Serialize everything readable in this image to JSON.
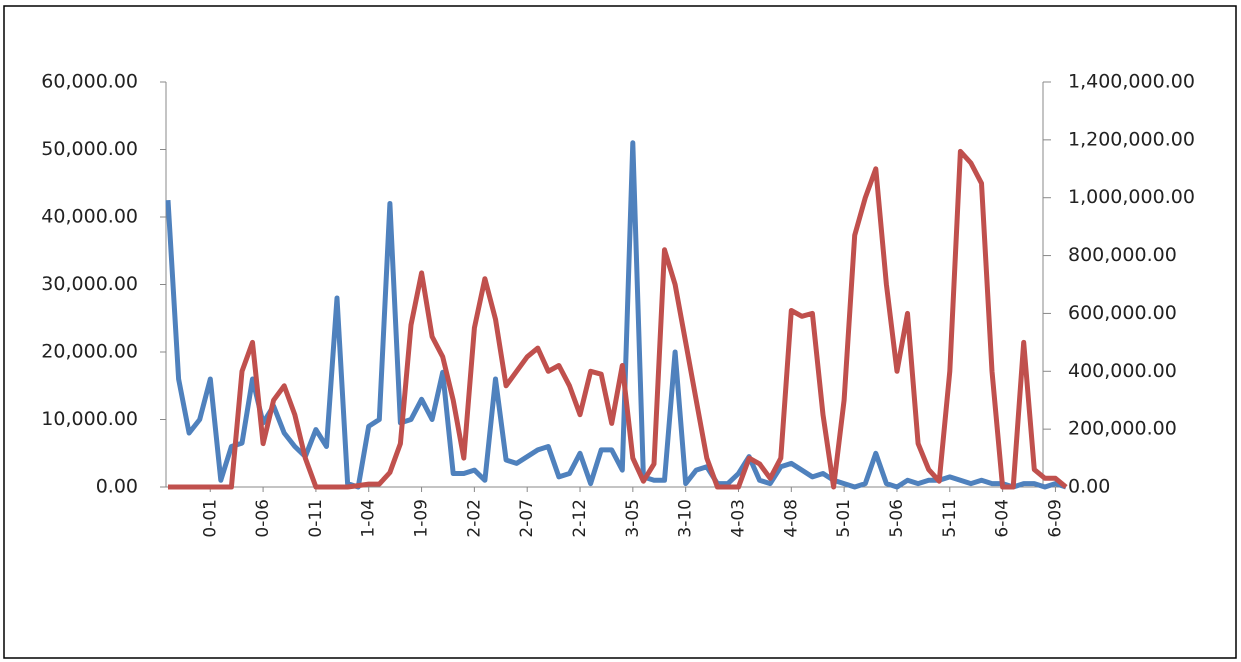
{
  "chart_data": {
    "type": "line",
    "categories": [
      null,
      null,
      null,
      null,
      "0-01",
      null,
      null,
      null,
      null,
      "0-06",
      null,
      null,
      null,
      null,
      "0-11",
      null,
      null,
      null,
      null,
      "1-04",
      null,
      null,
      null,
      null,
      "1-09",
      null,
      null,
      null,
      null,
      "2-02",
      null,
      null,
      null,
      null,
      "2-07",
      null,
      null,
      null,
      null,
      "2-12",
      null,
      null,
      null,
      null,
      "3-05",
      null,
      null,
      null,
      null,
      "3-10",
      null,
      null,
      null,
      null,
      "4-03",
      null,
      null,
      null,
      null,
      "4-08",
      null,
      null,
      null,
      null,
      "5-01",
      null,
      null,
      null,
      null,
      "5-06",
      null,
      null,
      null,
      null,
      "5-11",
      null,
      null,
      null,
      null,
      "6-04",
      null,
      null,
      null,
      null,
      "6-09",
      null
    ],
    "series": [
      {
        "color": "#4f81bd",
        "axis": "y",
        "values": [
          42500,
          16000,
          8000,
          10000,
          16000,
          1000,
          6000,
          6500,
          16000,
          9500,
          12000,
          8000,
          6000,
          4500,
          8500,
          6000,
          28000,
          500,
          0,
          9000,
          10000,
          42000,
          9500,
          10000,
          13000,
          10000,
          17000,
          2000,
          2000,
          2500,
          1000,
          16000,
          4000,
          3500,
          4500,
          5500,
          6000,
          1500,
          2000,
          5000,
          500,
          5500,
          5500,
          2500,
          51000,
          1500,
          1000,
          1000,
          20000,
          500,
          2500,
          3000,
          500,
          500,
          2000,
          4500,
          1000,
          500,
          3000,
          3500,
          2500,
          1500,
          2000,
          1000,
          500,
          0,
          500,
          5000,
          500,
          0,
          1000,
          500,
          1000,
          1000,
          1500,
          1000,
          500,
          1000,
          500,
          500,
          0,
          500,
          500,
          0,
          500,
          0
        ]
      },
      {
        "color": "#c0504d",
        "axis": "y2",
        "values": [
          0,
          0,
          0,
          0,
          0,
          0,
          0,
          400000,
          500000,
          150000,
          300000,
          350000,
          250000,
          100000,
          0,
          0,
          0,
          0,
          5000,
          10000,
          10000,
          50000,
          150000,
          560000,
          740000,
          520000,
          450000,
          300000,
          100000,
          550000,
          720000,
          580000,
          350000,
          400000,
          450000,
          480000,
          400000,
          420000,
          350000,
          250000,
          400000,
          390000,
          220000,
          420000,
          100000,
          20000,
          80000,
          820000,
          700000,
          500000,
          300000,
          100000,
          0,
          0,
          0,
          100000,
          80000,
          30000,
          100000,
          610000,
          590000,
          600000,
          250000,
          0,
          300000,
          870000,
          1000000,
          1100000,
          700000,
          400000,
          600000,
          150000,
          60000,
          20000,
          400000,
          1160000,
          1120000,
          1050000,
          400000,
          0,
          0,
          500000,
          60000,
          30000,
          30000,
          0
        ]
      }
    ],
    "ylim": [
      0,
      60000
    ],
    "yticks": [
      {
        "value": 0,
        "label": "0.00"
      },
      {
        "value": 10000,
        "label": "10,000.00"
      },
      {
        "value": 20000,
        "label": "20,000.00"
      },
      {
        "value": 30000,
        "label": "30,000.00"
      },
      {
        "value": 40000,
        "label": "40,000.00"
      },
      {
        "value": 50000,
        "label": "50,000.00"
      },
      {
        "value": 60000,
        "label": "60,000.00"
      }
    ],
    "y2lim": [
      0,
      1400000
    ],
    "y2ticks": [
      {
        "value": 0,
        "label": "0.00"
      },
      {
        "value": 200000,
        "label": "200,000.00"
      },
      {
        "value": 400000,
        "label": "400,000.00"
      },
      {
        "value": 600000,
        "label": "600,000.00"
      },
      {
        "value": 800000,
        "label": "800,000.00"
      },
      {
        "value": 1000000,
        "label": "1,000,000.00"
      },
      {
        "value": 1200000,
        "label": "1,200,000.00"
      },
      {
        "value": 1400000,
        "label": "1,400,000.00"
      }
    ]
  }
}
